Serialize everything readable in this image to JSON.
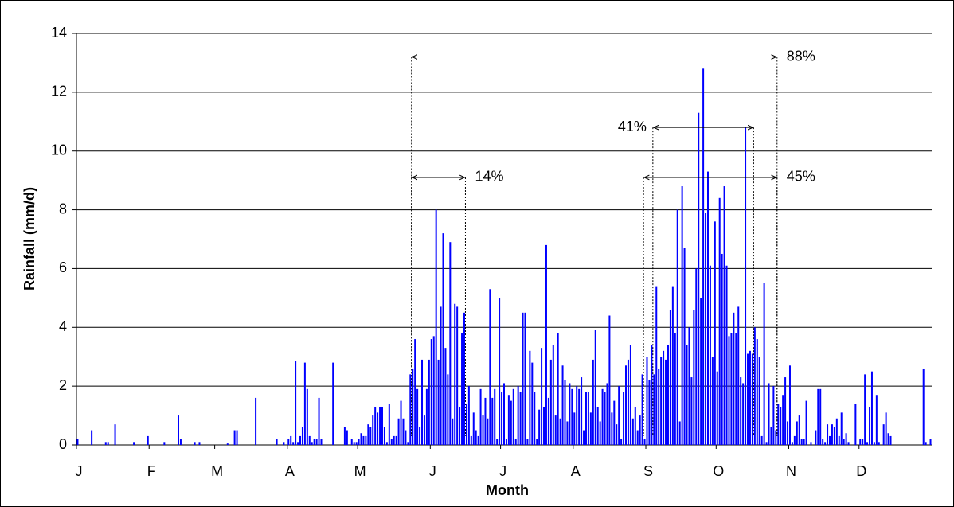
{
  "chart_data": {
    "type": "bar",
    "y_label": "Rainfall (mm/d)",
    "x_label": "Month",
    "color": "#0000ff",
    "grid": true,
    "ylim": [
      0,
      14
    ],
    "yticks": [
      0,
      2,
      4,
      6,
      8,
      10,
      12,
      14
    ],
    "categories": [
      "J",
      null,
      null,
      null,
      null,
      null,
      null,
      null,
      null,
      null,
      null,
      null,
      null,
      null,
      null,
      null,
      null,
      null,
      null,
      null,
      null,
      null,
      null,
      null,
      null,
      null,
      null,
      null,
      null,
      null,
      null,
      "F",
      null,
      null,
      null,
      null,
      null,
      null,
      null,
      null,
      null,
      null,
      null,
      null,
      null,
      null,
      null,
      null,
      null,
      null,
      null,
      null,
      null,
      null,
      null,
      null,
      null,
      null,
      null,
      "M",
      null,
      null,
      null,
      null,
      null,
      null,
      null,
      null,
      null,
      null,
      null,
      null,
      null,
      null,
      null,
      null,
      null,
      null,
      null,
      null,
      null,
      null,
      null,
      null,
      null,
      null,
      null,
      null,
      null,
      null,
      "A",
      null,
      null,
      null,
      null,
      null,
      null,
      null,
      null,
      null,
      null,
      null,
      null,
      null,
      null,
      null,
      null,
      null,
      null,
      null,
      null,
      null,
      null,
      null,
      null,
      null,
      null,
      null,
      null,
      null,
      "M",
      null,
      null,
      null,
      null,
      null,
      null,
      null,
      null,
      null,
      null,
      null,
      null,
      null,
      null,
      null,
      null,
      null,
      null,
      null,
      null,
      null,
      null,
      null,
      null,
      null,
      null,
      null,
      null,
      null,
      null,
      "J",
      null,
      null,
      null,
      null,
      null,
      null,
      null,
      null,
      null,
      null,
      null,
      null,
      null,
      null,
      null,
      null,
      null,
      null,
      null,
      null,
      null,
      null,
      null,
      null,
      null,
      null,
      null,
      null,
      null,
      "J",
      null,
      null,
      null,
      null,
      null,
      null,
      null,
      null,
      null,
      null,
      null,
      null,
      null,
      null,
      null,
      null,
      null,
      null,
      null,
      null,
      null,
      null,
      null,
      null,
      null,
      null,
      null,
      null,
      null,
      null,
      "A",
      null,
      null,
      null,
      null,
      null,
      null,
      null,
      null,
      null,
      null,
      null,
      null,
      null,
      null,
      null,
      null,
      null,
      null,
      null,
      null,
      null,
      null,
      null,
      null,
      null,
      null,
      null,
      null,
      null,
      null,
      "S",
      null,
      null,
      null,
      null,
      null,
      null,
      null,
      null,
      null,
      null,
      null,
      null,
      null,
      null,
      null,
      null,
      null,
      null,
      null,
      null,
      null,
      null,
      null,
      null,
      null,
      null,
      null,
      null,
      null,
      "O",
      null,
      null,
      null,
      null,
      null,
      null,
      null,
      null,
      null,
      null,
      null,
      null,
      null,
      null,
      null,
      null,
      null,
      null,
      null,
      null,
      null,
      null,
      null,
      null,
      null,
      null,
      null,
      null,
      null,
      null,
      "N",
      null,
      null,
      null,
      null,
      null,
      null,
      null,
      null,
      null,
      null,
      null,
      null,
      null,
      null,
      null,
      null,
      null,
      null,
      null,
      null,
      null,
      null,
      null,
      null,
      null,
      null,
      null,
      null,
      null,
      "D",
      null,
      null,
      null,
      null,
      null,
      null,
      null,
      null,
      null,
      null,
      null,
      null,
      null,
      null,
      null,
      null,
      null,
      null,
      null,
      null,
      null,
      null,
      null,
      null,
      null,
      null,
      null,
      null,
      null,
      null
    ],
    "values": [
      0.2,
      0,
      0,
      0,
      0,
      0,
      0.5,
      0,
      0,
      0,
      0,
      0,
      0.1,
      0.1,
      0,
      0,
      0.7,
      0,
      0,
      0,
      0,
      0,
      0,
      0,
      0.1,
      0,
      0,
      0,
      0,
      0,
      0.3,
      0,
      0,
      0,
      0,
      0,
      0,
      0.1,
      0,
      0,
      0,
      0,
      0,
      1.0,
      0.2,
      0,
      0,
      0,
      0,
      0,
      0.1,
      0,
      0.1,
      0,
      0,
      0,
      0,
      0,
      0,
      0,
      0,
      0,
      0,
      0,
      0.05,
      0,
      0,
      0.5,
      0.5,
      0,
      0,
      0,
      0,
      0,
      0,
      0,
      1.6,
      0,
      0,
      0,
      0,
      0,
      0,
      0,
      0,
      0.2,
      0,
      0,
      0.1,
      0,
      0.2,
      0.3,
      0.1,
      2.85,
      0.1,
      0.3,
      0.6,
      2.8,
      1.9,
      0.3,
      0.1,
      0.2,
      0.2,
      1.6,
      0.2,
      0,
      0,
      0,
      0,
      2.8,
      0,
      0,
      0,
      0,
      0.6,
      0.5,
      0,
      0.2,
      0.1,
      0.1,
      0.2,
      0.4,
      0.3,
      0.3,
      0.7,
      0.6,
      1.0,
      1.3,
      1.1,
      1.3,
      1.3,
      0.6,
      0.1,
      1.4,
      0.2,
      0.3,
      0.3,
      0.9,
      1.5,
      0.9,
      0.5,
      0.1,
      2.4,
      2.6,
      3.6,
      1.9,
      0.6,
      2.9,
      1.0,
      1.9,
      2.9,
      3.6,
      3.7,
      8.0,
      2.9,
      4.7,
      7.2,
      3.3,
      2.4,
      6.9,
      0.9,
      4.8,
      4.7,
      1.3,
      3.8,
      4.5,
      1.4,
      2.0,
      0.3,
      1.1,
      0.5,
      0.3,
      1.9,
      1.0,
      1.6,
      0.9,
      5.3,
      1.6,
      1.9,
      0.2,
      5.0,
      1.8,
      2.1,
      0.2,
      1.7,
      1.5,
      1.9,
      0.2,
      2.0,
      1.8,
      4.5,
      4.5,
      0.2,
      3.2,
      2.8,
      1.8,
      0.2,
      1.2,
      3.3,
      1.3,
      6.8,
      1.6,
      2.9,
      3.4,
      1.0,
      3.8,
      0.9,
      2.7,
      2.2,
      0.8,
      2.1,
      1.9,
      1.1,
      2.0,
      1.9,
      2.3,
      0.5,
      1.8,
      1.8,
      1.1,
      2.9,
      3.9,
      1.3,
      0.8,
      1.9,
      1.8,
      2.1,
      4.4,
      1.1,
      1.5,
      0.7,
      2.0,
      0.2,
      1.8,
      2.7,
      2.9,
      3.4,
      0.9,
      1.3,
      0.5,
      1.0,
      2.4,
      0.2,
      3.0,
      2.2,
      3.4,
      2.4,
      5.4,
      2.6,
      3.0,
      3.2,
      2.9,
      3.4,
      4.6,
      5.4,
      3.8,
      8.0,
      0.8,
      8.8,
      6.7,
      3.4,
      4.0,
      2.3,
      4.6,
      6.0,
      11.3,
      5.0,
      12.8,
      7.9,
      9.3,
      6.1,
      3.0,
      7.6,
      2.5,
      8.4,
      6.5,
      8.8,
      6.1,
      3.7,
      3.8,
      4.5,
      3.8,
      4.7,
      2.3,
      2.1,
      10.8,
      3.1,
      3.2,
      3.1,
      4.0,
      3.6,
      3.0,
      0.3,
      5.5,
      0.1,
      2.1,
      0.6,
      2.0,
      0.5,
      1.4,
      1.3,
      1.7,
      2.3,
      0.8,
      2.7,
      0.1,
      0.3,
      0.8,
      1.0,
      0.2,
      0.2,
      1.5,
      0,
      0.1,
      0,
      0.5,
      1.9,
      1.9,
      0.2,
      0.1,
      0.7,
      0.3,
      0.7,
      0.6,
      0.9,
      0.3,
      1.1,
      0.2,
      0.4,
      0.1,
      0,
      0,
      1.4,
      0,
      0.2,
      0.2,
      2.4,
      0.1,
      1.3,
      2.5,
      0.1,
      1.7,
      0.1,
      0,
      0.7,
      1.1,
      0.4,
      0.3,
      0,
      0,
      0,
      0,
      0,
      0,
      0,
      0,
      0,
      0,
      0,
      0,
      0,
      2.6,
      0.1,
      0,
      0.2
    ],
    "annotations": [
      {
        "text": "88%",
        "start": 143,
        "end": 299,
        "y": 13.2,
        "label_side": "right"
      },
      {
        "text": "14%",
        "start": 143,
        "end": 166,
        "y": 9.1,
        "label_side": "right"
      },
      {
        "text": "41%",
        "start": 246,
        "end": 289,
        "y": 10.8,
        "label_side": "left"
      },
      {
        "text": "45%",
        "start": 242,
        "end": 299,
        "y": 9.1,
        "label_side": "right"
      }
    ]
  }
}
